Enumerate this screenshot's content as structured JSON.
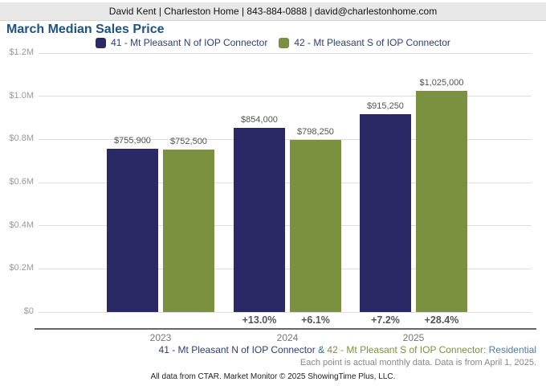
{
  "header": {
    "contact_line": "David Kent | Charleston Home | 843-884-0888 | david@charlestonhome.com"
  },
  "title": "March Median Sales Price",
  "chart_data": {
    "type": "bar",
    "title": "March Median Sales Price",
    "categories": [
      "2023",
      "2024",
      "2025"
    ],
    "series": [
      {
        "name": "41 - Mt Pleasant N of IOP Connector",
        "color": "#2b2965",
        "values": [
          755900,
          854000,
          915250
        ],
        "value_labels": [
          "$755,900",
          "$854,000",
          "$915,250"
        ],
        "pct_change_labels": [
          "",
          "+13.0%",
          "+7.2%"
        ]
      },
      {
        "name": "42 - Mt Pleasant S of IOP Connector",
        "color": "#7c9140",
        "values": [
          752500,
          798250,
          1025000
        ],
        "value_labels": [
          "$752,500",
          "$798,250",
          "$1,025,000"
        ],
        "pct_change_labels": [
          "",
          "+6.1%",
          "+28.4%"
        ]
      }
    ],
    "ylim": [
      0,
      1200000
    ],
    "yticks": [
      {
        "value": 0,
        "label": "$0"
      },
      {
        "value": 200000,
        "label": "$0.2M"
      },
      {
        "value": 400000,
        "label": "$0.4M"
      },
      {
        "value": 600000,
        "label": "$0.6M"
      },
      {
        "value": 800000,
        "label": "$0.8M"
      },
      {
        "value": 1000000,
        "label": "$1.0M"
      },
      {
        "value": 1200000,
        "label": "$1.2M"
      }
    ],
    "grid": true,
    "legend_position": "top"
  },
  "footer": {
    "series_note": {
      "series1": "41 - Mt Pleasant N of IOP Connector",
      "amp": " & ",
      "series2": "42 - Mt Pleasant S of IOP Connector:",
      "property_type": " Residential"
    },
    "data_note": "Each point is actual monthly data. Data is from April 1, 2025.",
    "copyright": "All data from CTAR. Market Monitor © 2025 ShowingTime Plus, LLC."
  }
}
